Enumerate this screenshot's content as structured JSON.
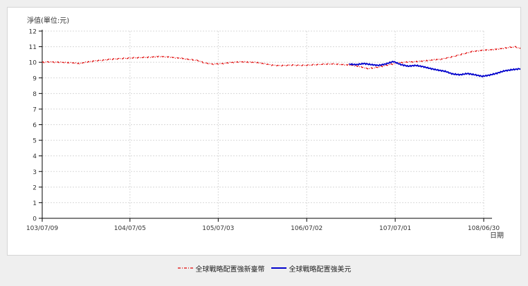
{
  "chart_data": {
    "type": "line",
    "ylabel": "淨值(單位:元)",
    "xlabel": "日期",
    "ylim": [
      0,
      12
    ],
    "yticks": [
      0,
      1,
      2,
      3,
      4,
      5,
      6,
      7,
      8,
      9,
      10,
      11,
      12
    ],
    "xticks": [
      "103/07/09",
      "104/07/05",
      "105/07/03",
      "106/07/02",
      "107/07/01",
      "108/06/30"
    ],
    "grid": true,
    "legend_position": "bottom",
    "series": [
      {
        "name": "全球戰略配置強新臺幣",
        "color": "#e00000",
        "style": "dash-dot",
        "start_date": "103/07/09",
        "step_months": 1,
        "values": [
          10.0,
          10.02,
          10.0,
          9.98,
          9.96,
          9.92,
          10.0,
          10.08,
          10.12,
          10.18,
          10.22,
          10.25,
          10.28,
          10.3,
          10.32,
          10.35,
          10.38,
          10.35,
          10.3,
          10.25,
          10.18,
          10.12,
          9.95,
          9.88,
          9.9,
          9.95,
          10.0,
          10.02,
          10.0,
          9.98,
          9.9,
          9.82,
          9.78,
          9.8,
          9.82,
          9.8,
          9.82,
          9.85,
          9.88,
          9.9,
          9.88,
          9.85,
          9.82,
          9.72,
          9.6,
          9.65,
          9.75,
          9.85,
          9.95,
          10.0,
          10.02,
          10.05,
          10.1,
          10.15,
          10.2,
          10.3,
          10.42,
          10.55,
          10.68,
          10.75,
          10.8,
          10.82,
          10.88,
          10.95,
          11.0,
          10.8,
          10.68,
          10.72,
          10.75,
          10.82,
          10.9,
          11.02,
          11.08,
          11.0,
          10.95,
          10.9,
          10.85,
          10.75,
          10.62,
          10.55,
          10.45,
          10.35,
          10.25,
          10.4,
          10.52,
          10.6,
          10.7,
          10.8,
          10.85,
          10.8,
          10.75,
          10.7,
          10.95
        ]
      },
      {
        "name": "全球戰略配置強美元",
        "color": "#0000cc",
        "style": "solid",
        "start_date": "106/12/24",
        "step_months": 1,
        "values": [
          9.88,
          9.85,
          9.92,
          9.85,
          9.8,
          9.9,
          10.05,
          9.85,
          9.75,
          9.8,
          9.72,
          9.6,
          9.5,
          9.42,
          9.25,
          9.2,
          9.28,
          9.2,
          9.1,
          9.18,
          9.3,
          9.45,
          9.52,
          9.58,
          9.62,
          9.6,
          9.5,
          9.38,
          9.55,
          9.7
        ]
      }
    ]
  }
}
